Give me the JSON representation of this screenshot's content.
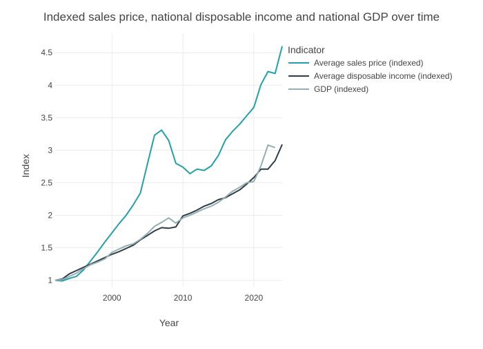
{
  "chart_data": {
    "type": "line",
    "title": "Indexed sales price, national disposable income and national GDP over time",
    "xlabel": "Year",
    "ylabel": "Index",
    "xlim": [
      1992,
      2024
    ],
    "ylim": [
      0.9,
      4.8
    ],
    "xticks": [
      2000,
      2010,
      2020
    ],
    "yticks": [
      1,
      1.5,
      2,
      2.5,
      3,
      3.5,
      4,
      4.5
    ],
    "grid": true,
    "legend": {
      "title": "Indicator",
      "placement": "right"
    },
    "series": [
      {
        "name": "Average sales price (indexed)",
        "color": "#21a0aa",
        "x": [
          1992,
          1993,
          1994,
          1995,
          1996,
          1997,
          1998,
          1999,
          2000,
          2001,
          2002,
          2003,
          2004,
          2005,
          2006,
          2007,
          2008,
          2009,
          2010,
          2011,
          2012,
          2013,
          2014,
          2015,
          2016,
          2017,
          2018,
          2019,
          2020,
          2021,
          2022,
          2023,
          2024
        ],
        "values": [
          1.0,
          0.99,
          1.03,
          1.06,
          1.16,
          1.3,
          1.44,
          1.59,
          1.73,
          1.87,
          2.0,
          2.16,
          2.34,
          2.79,
          3.23,
          3.31,
          3.15,
          2.8,
          2.74,
          2.64,
          2.71,
          2.69,
          2.76,
          2.92,
          3.16,
          3.29,
          3.4,
          3.53,
          3.66,
          4.01,
          4.21,
          4.18,
          4.6
        ]
      },
      {
        "name": "Average disposable income (indexed)",
        "color": "#2f3e46",
        "x": [
          1992,
          1993,
          1994,
          1995,
          1996,
          1997,
          1998,
          1999,
          2000,
          2001,
          2002,
          2003,
          2004,
          2005,
          2006,
          2007,
          2008,
          2009,
          2010,
          2011,
          2012,
          2013,
          2014,
          2015,
          2016,
          2017,
          2018,
          2019,
          2020,
          2021,
          2022,
          2023,
          2024
        ],
        "values": [
          1.0,
          1.02,
          1.1,
          1.15,
          1.2,
          1.25,
          1.3,
          1.35,
          1.4,
          1.44,
          1.49,
          1.54,
          1.62,
          1.69,
          1.76,
          1.81,
          1.8,
          1.82,
          1.99,
          2.03,
          2.08,
          2.14,
          2.18,
          2.24,
          2.27,
          2.33,
          2.39,
          2.48,
          2.58,
          2.71,
          2.71,
          2.84,
          3.09
        ]
      },
      {
        "name": "GDP (indexed)",
        "color": "#93aeb3",
        "x": [
          1992,
          1993,
          1994,
          1995,
          1996,
          1997,
          1998,
          1999,
          2000,
          2001,
          2002,
          2003,
          2004,
          2005,
          2006,
          2007,
          2008,
          2009,
          2010,
          2011,
          2012,
          2013,
          2014,
          2015,
          2016,
          2017,
          2018,
          2019,
          2020,
          2021,
          2022,
          2023
        ],
        "values": [
          1.0,
          1.01,
          1.06,
          1.11,
          1.18,
          1.24,
          1.28,
          1.33,
          1.43,
          1.48,
          1.53,
          1.56,
          1.63,
          1.72,
          1.83,
          1.89,
          1.96,
          1.88,
          1.96,
          2.0,
          2.05,
          2.1,
          2.14,
          2.2,
          2.28,
          2.37,
          2.43,
          2.5,
          2.52,
          2.76,
          3.08,
          3.04
        ]
      }
    ]
  }
}
